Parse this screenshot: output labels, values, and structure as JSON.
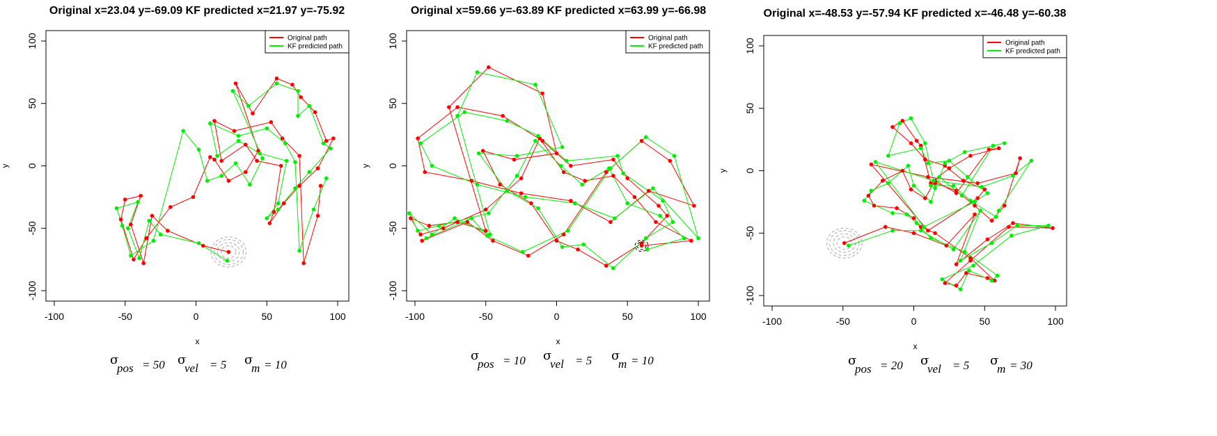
{
  "chart_data": [
    {
      "type": "line",
      "title": "Original x=23.04 y=-69.09 KF predicted x=21.97 y=-75.92",
      "xlabel": "x",
      "ylabel": "y",
      "xlim": [
        -100,
        100
      ],
      "ylim": [
        -100,
        100
      ],
      "xticks": [
        "-100",
        "-50",
        "0",
        "50",
        "100"
      ],
      "yticks": [
        "-100",
        "-50",
        "0",
        "50",
        "100"
      ],
      "legend_position": "top-right",
      "series": [
        {
          "name": "Original path",
          "color": "#ff0000",
          "x": [
            23,
            5,
            -20,
            -31,
            -37,
            -46,
            -39,
            -50,
            -53,
            -44,
            -35,
            -18,
            -2,
            10,
            13,
            23,
            35,
            44,
            28,
            40,
            57,
            68,
            74,
            84,
            92,
            97,
            86,
            73,
            62,
            52,
            55,
            60,
            43,
            35,
            18,
            13,
            27,
            53,
            61,
            73,
            76,
            86,
            88
          ],
          "y": [
            -69,
            -64,
            -52,
            -40,
            -78,
            -47,
            -24,
            -27,
            -43,
            -75,
            -58,
            -33,
            -25,
            7,
            5,
            -12,
            -5,
            12,
            66,
            42,
            70,
            65,
            55,
            43,
            20,
            22,
            -2,
            -16,
            -30,
            -46,
            -37,
            0,
            4,
            17,
            4,
            36,
            28,
            35,
            22,
            8,
            -78,
            -40,
            -16
          ],
          "label_point": {
            "x": 23.04,
            "y": -69.09
          }
        },
        {
          "name": "KF predicted path",
          "color": "#00ee00",
          "x": [
            22,
            2,
            -25,
            -33,
            -40,
            -48,
            -41,
            -56,
            -52,
            -46,
            -30,
            -9,
            2,
            8,
            18,
            28,
            38,
            47,
            26,
            37,
            57,
            72,
            72,
            80,
            90,
            95,
            80,
            70,
            58,
            50,
            58,
            64,
            45,
            30,
            15,
            10,
            30,
            50,
            63,
            70,
            73,
            83,
            92
          ],
          "y": [
            -76,
            -62,
            -55,
            -44,
            -74,
            -50,
            -29,
            -34,
            -48,
            -72,
            -60,
            28,
            13,
            -12,
            -8,
            2,
            -15,
            6,
            60,
            48,
            66,
            60,
            40,
            48,
            18,
            14,
            -5,
            -18,
            -35,
            -42,
            -30,
            4,
            10,
            20,
            8,
            34,
            24,
            30,
            18,
            3,
            -68,
            -35,
            -10
          ]
        }
      ],
      "caption": {
        "pos": "50",
        "vel": "5",
        "m": "10"
      }
    },
    {
      "type": "line",
      "title": "Original x=59.66 y=-63.89 KF predicted x=63.99 y=-66.98",
      "xlabel": "x",
      "ylabel": "y",
      "xlim": [
        -100,
        100
      ],
      "ylim": [
        -100,
        100
      ],
      "xticks": [
        "-100",
        "-50",
        "0",
        "50",
        "100"
      ],
      "yticks": [
        "-100",
        "-50",
        "0",
        "50",
        "100"
      ],
      "legend_position": "top-right",
      "series": [
        {
          "name": "Original path",
          "color": "#ff0000",
          "x": [
            60,
            95,
            70,
            55,
            40,
            20,
            5,
            -12,
            -25,
            -50,
            -80,
            -96,
            -103,
            -90,
            -70,
            -50,
            -76,
            -48,
            -10,
            0,
            -30,
            -52,
            -40,
            -18,
            0,
            15,
            35,
            60,
            78,
            72,
            50,
            40,
            10,
            -10,
            -38,
            -70,
            -98,
            -93,
            -60,
            -25,
            10,
            38,
            65,
            97,
            80,
            60,
            35,
            5,
            -20,
            -45,
            -63,
            -95
          ],
          "y": [
            -64,
            -60,
            -45,
            -25,
            -8,
            -12,
            -5,
            22,
            -10,
            -35,
            -50,
            -55,
            -42,
            -48,
            -45,
            -52,
            47,
            79,
            58,
            10,
            5,
            12,
            -15,
            -30,
            -60,
            -67,
            -80,
            -62,
            -40,
            -32,
            -10,
            5,
            0,
            20,
            40,
            47,
            22,
            -5,
            -12,
            -22,
            -28,
            -45,
            -20,
            -32,
            4,
            20,
            -5,
            -55,
            -72,
            -60,
            -45,
            -60
          ]
        },
        {
          "name": "KF predicted path",
          "color": "#00ee00",
          "x": [
            64,
            90,
            73,
            50,
            37,
            18,
            3,
            -15,
            -28,
            -48,
            -83,
            -98,
            -104,
            -88,
            -72,
            -47,
            -70,
            -56,
            -15,
            4,
            -28,
            -55,
            -35,
            -13,
            4,
            19,
            40,
            63,
            82,
            75,
            47,
            43,
            7,
            -13,
            -35,
            -65,
            -96,
            -88,
            -56,
            -22,
            13,
            41,
            68,
            100,
            83,
            63,
            38,
            8,
            -24,
            -49,
            -60,
            -92
          ],
          "y": [
            -67,
            -58,
            -40,
            -30,
            -2,
            -15,
            0,
            20,
            -8,
            -38,
            -48,
            -52,
            -38,
            -55,
            -42,
            -55,
            40,
            75,
            65,
            15,
            8,
            10,
            -20,
            -34,
            -65,
            -63,
            -82,
            -58,
            -45,
            -28,
            -6,
            8,
            4,
            24,
            36,
            43,
            18,
            0,
            -15,
            -25,
            -30,
            -42,
            -18,
            -58,
            8,
            23,
            -2,
            -52,
            -69,
            -56,
            -42,
            -58
          ]
        }
      ],
      "caption": {
        "pos": "10",
        "vel": "5",
        "m": "10"
      }
    },
    {
      "type": "line",
      "title": "Original x=-48.53 y=-57.94 KF predicted x=-46.48 y=-60.38",
      "xlabel": "x",
      "ylabel": "y",
      "xlim": [
        -100,
        100
      ],
      "ylim": [
        -100,
        100
      ],
      "xticks": [
        "-100",
        "-50",
        "0",
        "50",
        "100"
      ],
      "yticks": [
        "-100",
        "-50",
        "0",
        "50",
        "100"
      ],
      "legend_position": "top-right",
      "series": [
        {
          "name": "Original path",
          "color": "#ff0000",
          "x": [
            -49,
            -20,
            0,
            23,
            43,
            30,
            52,
            70,
            98,
            67,
            40,
            22,
            30,
            37,
            52,
            57,
            40,
            15,
            5,
            0,
            -12,
            -28,
            -32,
            -22,
            -8,
            -2,
            8,
            15,
            30,
            53,
            60,
            40,
            25,
            12,
            5,
            2,
            -8,
            -15,
            -2,
            8,
            22,
            35,
            50,
            45,
            10,
            -30,
            10,
            45,
            72,
            75,
            64,
            55,
            43,
            30,
            15
          ],
          "y": [
            -58,
            -45,
            -50,
            -60,
            -35,
            -75,
            -55,
            -42,
            -46,
            -45,
            -72,
            -90,
            -92,
            -82,
            -86,
            -88,
            -70,
            -50,
            -45,
            -38,
            -30,
            -28,
            -20,
            -8,
            0,
            -15,
            -22,
            -8,
            -18,
            17,
            18,
            12,
            2,
            -10,
            20,
            24,
            40,
            35,
            22,
            9,
            4,
            -8,
            -15,
            -22,
            -48,
            5,
            -5,
            -10,
            -2,
            10,
            -28,
            -40,
            -28,
            -16,
            -10
          ]
        },
        {
          "name": "KF predicted path",
          "color": "#00ee00",
          "x": [
            -46,
            -15,
            5,
            28,
            47,
            33,
            55,
            73,
            95,
            69,
            42,
            20,
            33,
            39,
            55,
            59,
            36,
            12,
            2,
            -5,
            -15,
            -35,
            -30,
            -18,
            -4,
            0,
            12,
            18,
            34,
            56,
            64,
            36,
            22,
            15,
            8,
            -2,
            -10,
            -18,
            5,
            10,
            25,
            38,
            52,
            43,
            7,
            -27,
            14,
            48,
            70,
            83,
            60,
            58,
            40,
            28,
            12
          ],
          "y": [
            -60,
            -48,
            -48,
            -63,
            -32,
            -72,
            -58,
            -44,
            -44,
            -52,
            -76,
            -87,
            -95,
            -80,
            -88,
            -84,
            -65,
            -54,
            -42,
            -35,
            -34,
            -24,
            -16,
            -10,
            4,
            -12,
            -25,
            -5,
            -20,
            20,
            22,
            15,
            6,
            -14,
            22,
            42,
            38,
            12,
            18,
            6,
            8,
            -5,
            -18,
            -25,
            -45,
            7,
            -8,
            -13,
            -4,
            8,
            -32,
            -37,
            -24,
            -12,
            -12
          ]
        }
      ],
      "caption": {
        "pos": "20",
        "vel": "5",
        "m": "30"
      }
    }
  ]
}
